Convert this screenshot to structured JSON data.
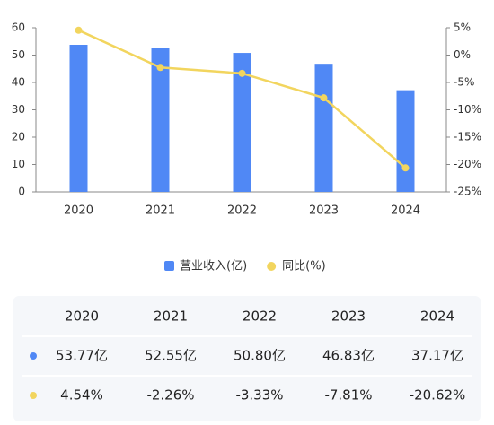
{
  "chart_data": {
    "type": "bar-line",
    "categories": [
      "2020",
      "2021",
      "2022",
      "2023",
      "2024"
    ],
    "series": [
      {
        "name": "营业收入(亿)",
        "type": "bar",
        "color": "#5088f5",
        "values": [
          53.77,
          52.55,
          50.8,
          46.83,
          37.17
        ],
        "value_labels": [
          "53.77亿",
          "52.55亿",
          "50.80亿",
          "46.83亿",
          "37.17亿"
        ]
      },
      {
        "name": "同比(%)",
        "type": "line",
        "axis": "y2",
        "color": "#f2d55e",
        "values": [
          4.54,
          -2.26,
          -3.33,
          -7.81,
          -20.62
        ],
        "value_labels": [
          "4.54%",
          "-2.26%",
          "-3.33%",
          "-7.81%",
          "-20.62%"
        ]
      }
    ],
    "ylim": [
      0,
      60
    ],
    "yticks": [
      0,
      10,
      20,
      30,
      40,
      50,
      60
    ],
    "y2lim": [
      -25,
      5
    ],
    "y2ticks": [
      {
        "value": 5,
        "label": "5%"
      },
      {
        "value": 0,
        "label": "0%"
      },
      {
        "value": -5,
        "label": "-5%"
      },
      {
        "value": -10,
        "label": "-10%"
      },
      {
        "value": -15,
        "label": "-15%"
      },
      {
        "value": -20,
        "label": "-20%"
      },
      {
        "value": -25,
        "label": "-25%"
      }
    ]
  }
}
